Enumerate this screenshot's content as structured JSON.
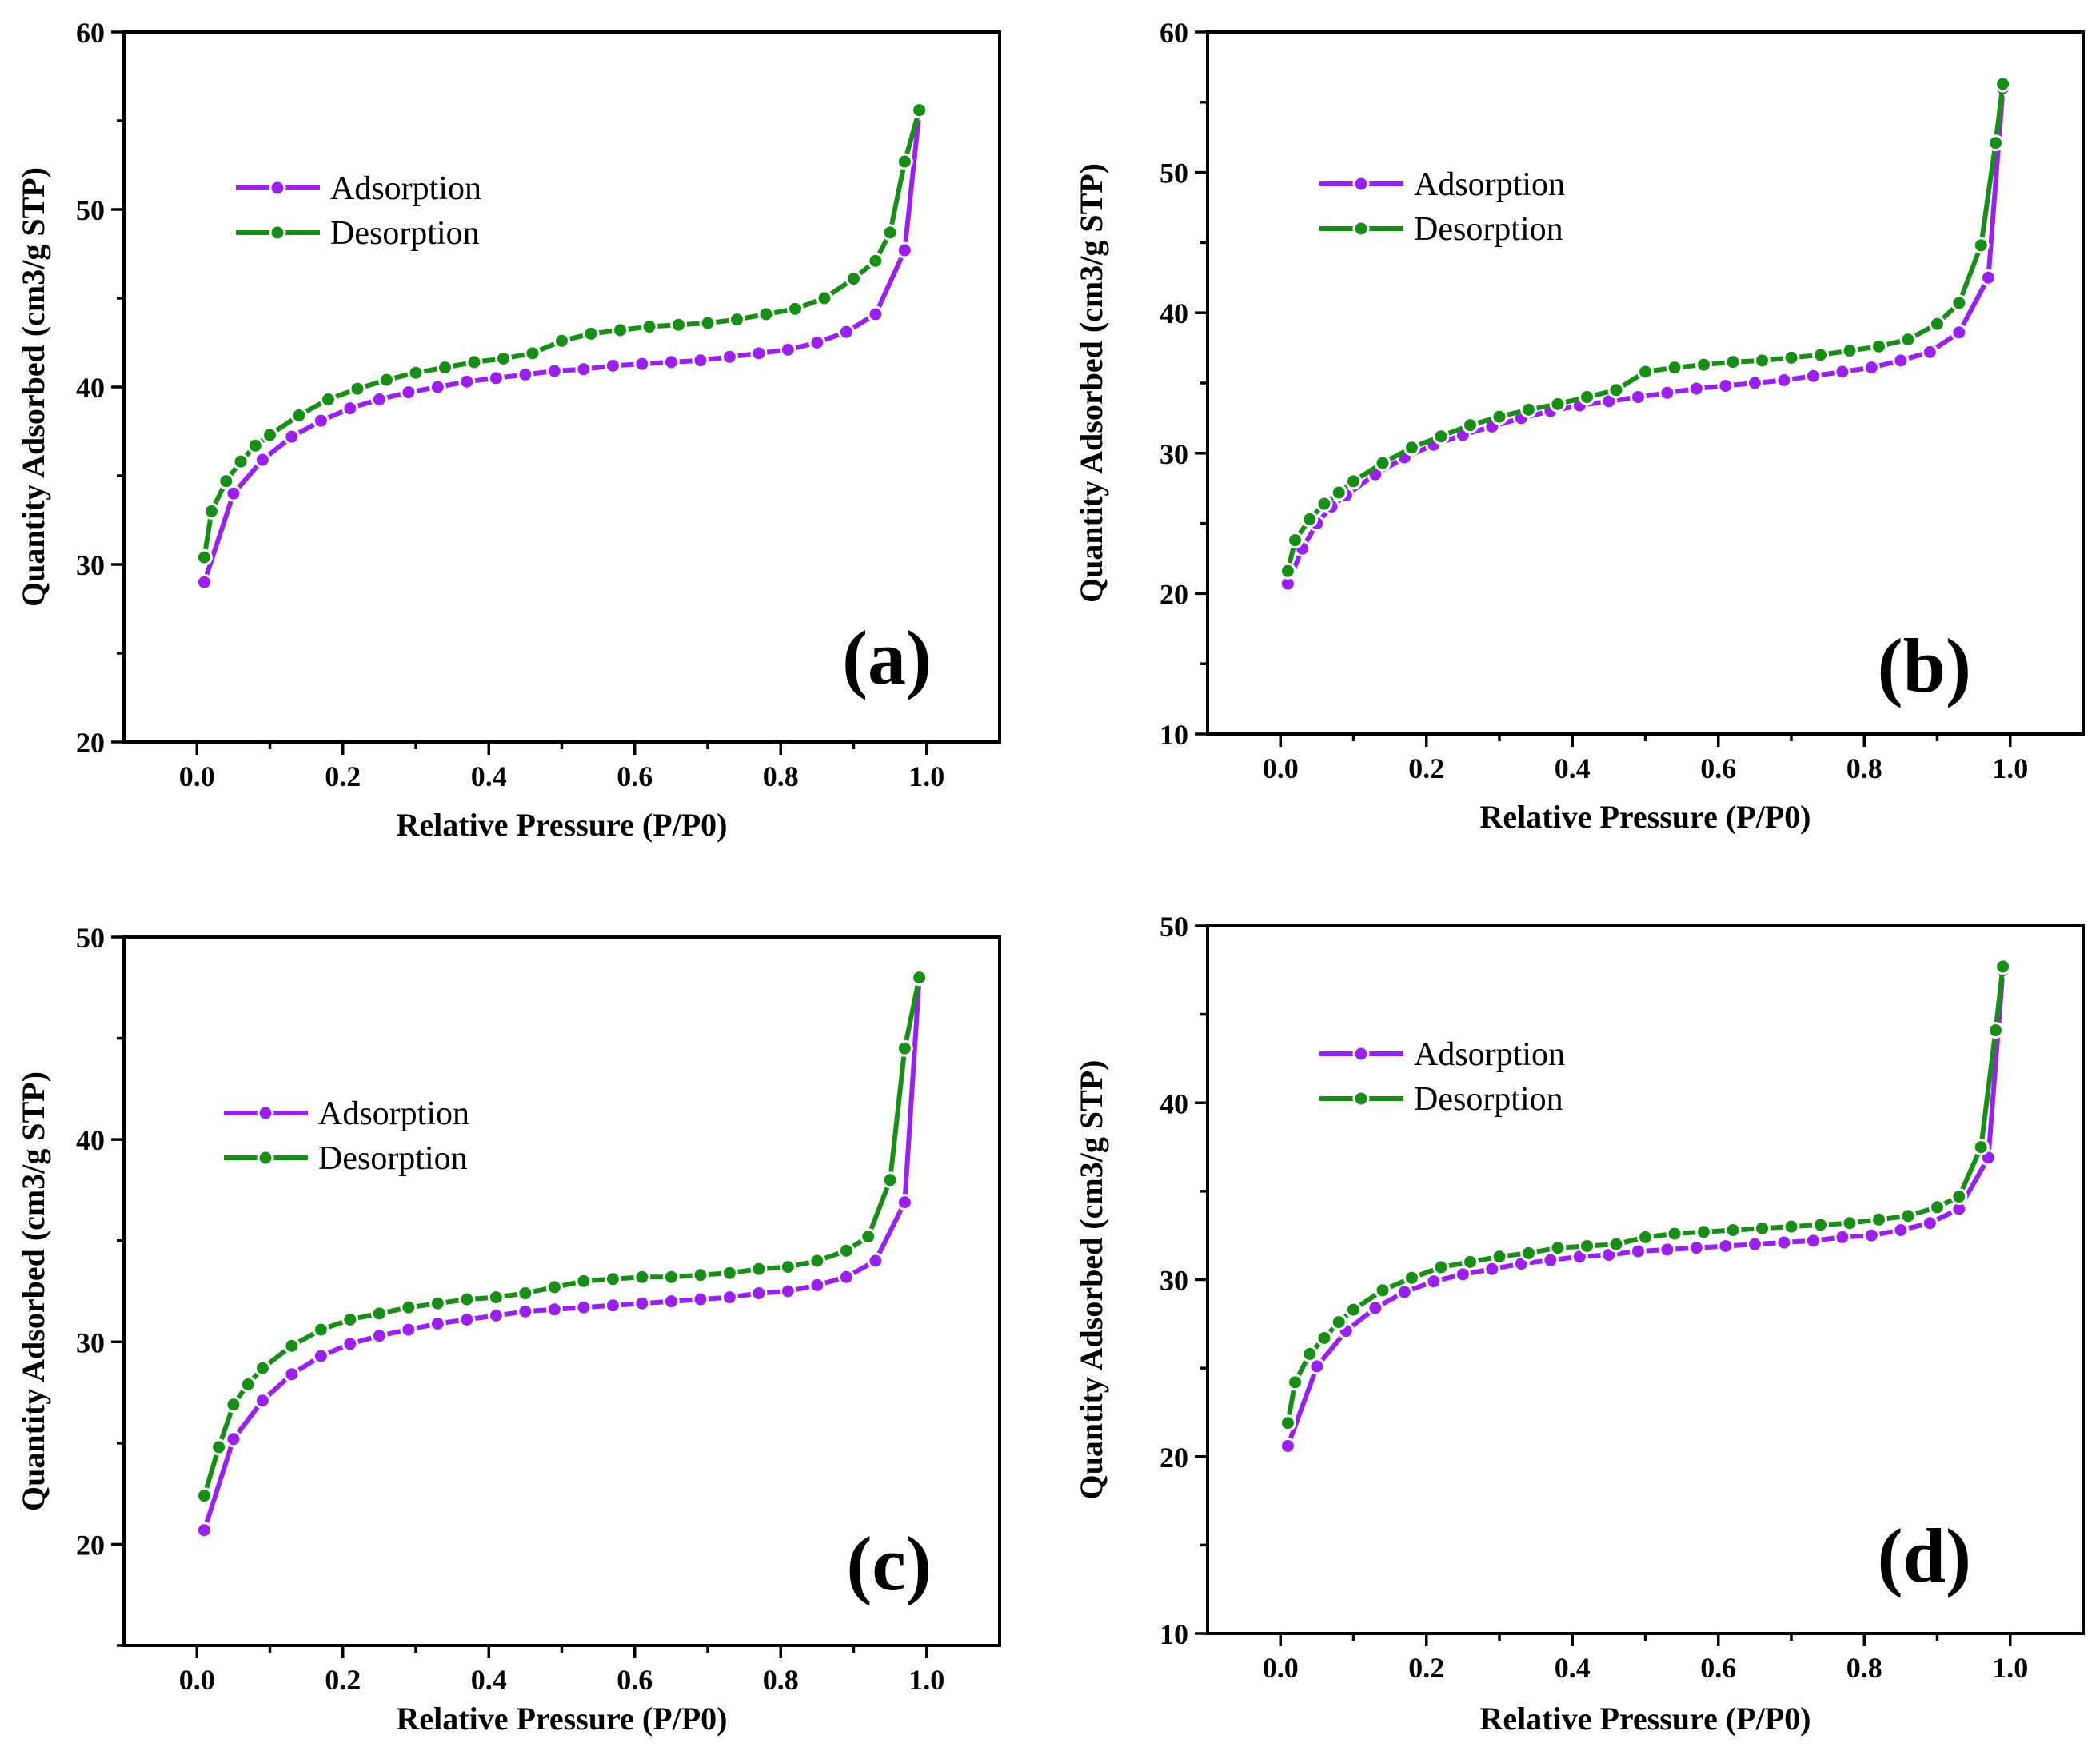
{
  "figure": {
    "xlabel": "Relative Pressure (P/P0)",
    "ylabel": "Quantity Adsorbed (cm3/g STP)",
    "legend": [
      "Adsorption",
      "Desorption"
    ],
    "colors": {
      "adsorption": "#9a1ff0",
      "desorption": "#178f17"
    }
  },
  "chart_data": [
    {
      "type": "line",
      "panel_label": "(a)",
      "title": "",
      "xlabel": "Relative Pressure (P/P0)",
      "ylabel": "Quantity Adsorbed (cm3/g STP)",
      "xlim": [
        -0.1,
        1.1
      ],
      "ylim": [
        20,
        60
      ],
      "x_ticks": [
        "0.0",
        "0.2",
        "0.4",
        "0.6",
        "0.8",
        "1.0"
      ],
      "y_ticks": [
        "20",
        "30",
        "40",
        "50",
        "60"
      ],
      "legend_position": "upper-left",
      "series": [
        {
          "name": "Adsorption",
          "color": "#9a1ff0",
          "x": [
            0.01,
            0.05,
            0.09,
            0.13,
            0.17,
            0.21,
            0.25,
            0.29,
            0.33,
            0.37,
            0.41,
            0.45,
            0.49,
            0.53,
            0.57,
            0.61,
            0.65,
            0.69,
            0.73,
            0.77,
            0.81,
            0.85,
            0.89,
            0.93,
            0.97,
            0.99
          ],
          "y": [
            29.0,
            34.0,
            35.9,
            37.2,
            38.1,
            38.8,
            39.3,
            39.7,
            40.0,
            40.3,
            40.5,
            40.7,
            40.9,
            41.0,
            41.2,
            41.3,
            41.4,
            41.5,
            41.7,
            41.9,
            42.1,
            42.5,
            43.1,
            44.1,
            47.7,
            55.5
          ]
        },
        {
          "name": "Desorption",
          "color": "#178f17",
          "x": [
            0.99,
            0.97,
            0.95,
            0.93,
            0.9,
            0.86,
            0.82,
            0.78,
            0.74,
            0.7,
            0.66,
            0.62,
            0.58,
            0.54,
            0.5,
            0.46,
            0.42,
            0.38,
            0.34,
            0.3,
            0.26,
            0.22,
            0.18,
            0.14,
            0.1,
            0.08,
            0.06,
            0.04,
            0.02,
            0.01
          ],
          "y": [
            55.6,
            52.7,
            48.7,
            47.1,
            46.1,
            45.0,
            44.4,
            44.1,
            43.8,
            43.6,
            43.5,
            43.4,
            43.2,
            43.0,
            42.6,
            41.9,
            41.6,
            41.4,
            41.1,
            40.8,
            40.4,
            39.9,
            39.3,
            38.4,
            37.3,
            36.7,
            35.8,
            34.7,
            33.0,
            30.4
          ]
        }
      ]
    },
    {
      "type": "line",
      "panel_label": "(b)",
      "title": "",
      "xlabel": "Relative Pressure (P/P0)",
      "ylabel": "Quantity Adsorbed (cm3/g STP)",
      "xlim": [
        -0.1,
        1.1
      ],
      "ylim": [
        10,
        60
      ],
      "x_ticks": [
        "0.0",
        "0.2",
        "0.4",
        "0.6",
        "0.8",
        "1.0"
      ],
      "y_ticks": [
        "10",
        "20",
        "30",
        "40",
        "50",
        "60"
      ],
      "legend_position": "upper-left",
      "series": [
        {
          "name": "Adsorption",
          "color": "#9a1ff0",
          "x": [
            0.01,
            0.03,
            0.05,
            0.07,
            0.09,
            0.13,
            0.17,
            0.21,
            0.25,
            0.29,
            0.33,
            0.37,
            0.41,
            0.45,
            0.49,
            0.53,
            0.57,
            0.61,
            0.65,
            0.69,
            0.73,
            0.77,
            0.81,
            0.85,
            0.89,
            0.93,
            0.97,
            0.99
          ],
          "y": [
            20.7,
            23.2,
            25.0,
            26.2,
            27.0,
            28.5,
            29.7,
            30.6,
            31.3,
            31.9,
            32.5,
            33.0,
            33.4,
            33.7,
            34.0,
            34.3,
            34.6,
            34.8,
            35.0,
            35.2,
            35.5,
            35.8,
            36.1,
            36.6,
            37.2,
            38.6,
            42.5,
            56.0
          ]
        },
        {
          "name": "Desorption",
          "color": "#178f17",
          "x": [
            0.99,
            0.98,
            0.96,
            0.93,
            0.9,
            0.86,
            0.82,
            0.78,
            0.74,
            0.7,
            0.66,
            0.62,
            0.58,
            0.54,
            0.5,
            0.46,
            0.42,
            0.38,
            0.34,
            0.3,
            0.26,
            0.22,
            0.18,
            0.14,
            0.1,
            0.08,
            0.06,
            0.04,
            0.02,
            0.01
          ],
          "y": [
            56.3,
            52.1,
            44.8,
            40.7,
            39.2,
            38.1,
            37.6,
            37.3,
            37.0,
            36.8,
            36.6,
            36.5,
            36.3,
            36.1,
            35.8,
            34.5,
            34.0,
            33.5,
            33.1,
            32.6,
            32.0,
            31.2,
            30.4,
            29.3,
            28.0,
            27.2,
            26.4,
            25.3,
            23.8,
            21.6
          ]
        }
      ]
    },
    {
      "type": "line",
      "panel_label": "(c)",
      "title": "",
      "xlabel": "Relative Pressure (P/P0)",
      "ylabel": "Quantity Adsorbed (cm3/g STP)",
      "xlim": [
        -0.1,
        1.1
      ],
      "ylim": [
        15,
        50
      ],
      "x_ticks": [
        "0.0",
        "0.2",
        "0.4",
        "0.6",
        "0.8",
        "1.0"
      ],
      "y_ticks": [
        "20",
        "30",
        "40",
        "50"
      ],
      "legend_position": "upper-left",
      "series": [
        {
          "name": "Adsorption",
          "color": "#9a1ff0",
          "x": [
            0.01,
            0.05,
            0.09,
            0.13,
            0.17,
            0.21,
            0.25,
            0.29,
            0.33,
            0.37,
            0.41,
            0.45,
            0.49,
            0.53,
            0.57,
            0.61,
            0.65,
            0.69,
            0.73,
            0.77,
            0.81,
            0.85,
            0.89,
            0.93,
            0.97,
            0.99
          ],
          "y": [
            20.7,
            25.2,
            27.1,
            28.4,
            29.3,
            29.9,
            30.3,
            30.6,
            30.9,
            31.1,
            31.3,
            31.5,
            31.6,
            31.7,
            31.8,
            31.9,
            32.0,
            32.1,
            32.2,
            32.4,
            32.5,
            32.8,
            33.2,
            34.0,
            36.9,
            48.0
          ]
        },
        {
          "name": "Desorption",
          "color": "#178f17",
          "x": [
            0.99,
            0.97,
            0.95,
            0.92,
            0.89,
            0.85,
            0.81,
            0.77,
            0.73,
            0.69,
            0.65,
            0.61,
            0.57,
            0.53,
            0.49,
            0.45,
            0.41,
            0.37,
            0.33,
            0.29,
            0.25,
            0.21,
            0.17,
            0.13,
            0.09,
            0.07,
            0.05,
            0.03,
            0.01
          ],
          "y": [
            48.0,
            44.5,
            38.0,
            35.2,
            34.5,
            34.0,
            33.7,
            33.6,
            33.4,
            33.3,
            33.2,
            33.2,
            33.1,
            33.0,
            32.7,
            32.4,
            32.2,
            32.1,
            31.9,
            31.7,
            31.4,
            31.1,
            30.6,
            29.8,
            28.7,
            27.9,
            26.9,
            24.8,
            22.4
          ]
        }
      ]
    },
    {
      "type": "line",
      "panel_label": "(d)",
      "title": "",
      "xlabel": "Relative Pressure (P/P0)",
      "ylabel": "Quantity Adsorbed (cm3/g STP)",
      "xlim": [
        -0.1,
        1.1
      ],
      "ylim": [
        10,
        50
      ],
      "x_ticks": [
        "0.0",
        "0.2",
        "0.4",
        "0.6",
        "0.8",
        "1.0"
      ],
      "y_ticks": [
        "10",
        "20",
        "30",
        "40",
        "50"
      ],
      "legend_position": "upper-left",
      "series": [
        {
          "name": "Adsorption",
          "color": "#9a1ff0",
          "x": [
            0.01,
            0.05,
            0.09,
            0.13,
            0.17,
            0.21,
            0.25,
            0.29,
            0.33,
            0.37,
            0.41,
            0.45,
            0.49,
            0.53,
            0.57,
            0.61,
            0.65,
            0.69,
            0.73,
            0.77,
            0.81,
            0.85,
            0.89,
            0.93,
            0.97,
            0.99
          ],
          "y": [
            20.6,
            25.1,
            27.1,
            28.4,
            29.3,
            29.9,
            30.3,
            30.6,
            30.9,
            31.1,
            31.3,
            31.4,
            31.6,
            31.7,
            31.8,
            31.9,
            32.0,
            32.1,
            32.2,
            32.4,
            32.5,
            32.8,
            33.2,
            34.0,
            36.9,
            47.5
          ]
        },
        {
          "name": "Desorption",
          "color": "#178f17",
          "x": [
            0.99,
            0.98,
            0.96,
            0.93,
            0.9,
            0.86,
            0.82,
            0.78,
            0.74,
            0.7,
            0.66,
            0.62,
            0.58,
            0.54,
            0.5,
            0.46,
            0.42,
            0.38,
            0.34,
            0.3,
            0.26,
            0.22,
            0.18,
            0.14,
            0.1,
            0.08,
            0.06,
            0.04,
            0.02,
            0.01
          ],
          "y": [
            47.7,
            44.1,
            37.5,
            34.7,
            34.1,
            33.6,
            33.4,
            33.2,
            33.1,
            33.0,
            32.9,
            32.8,
            32.7,
            32.6,
            32.4,
            32.0,
            31.9,
            31.8,
            31.5,
            31.3,
            31.0,
            30.7,
            30.1,
            29.4,
            28.3,
            27.6,
            26.7,
            25.8,
            24.2,
            21.9
          ]
        }
      ]
    }
  ]
}
